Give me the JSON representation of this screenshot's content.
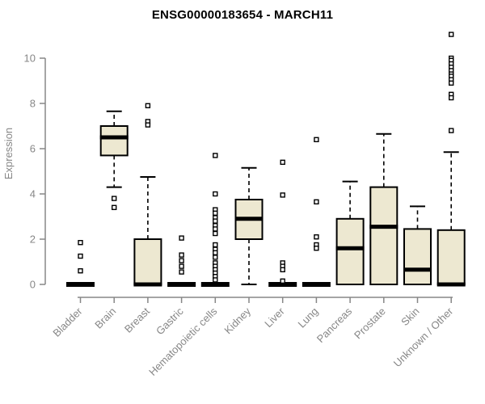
{
  "chart_data": {
    "type": "boxplot",
    "title": "ENSG00000183654 - MARCH11",
    "ylabel": "Expression",
    "xlabel": "",
    "yticks": [
      0,
      2,
      4,
      6,
      8,
      10
    ],
    "ylim": [
      0,
      11.2
    ],
    "grid": false,
    "legend": "none",
    "categories": [
      "Bladder",
      "Brain",
      "Breast",
      "Gastric",
      "Hematopoietic cells",
      "Kidney",
      "Liver",
      "Lung",
      "Pancreas",
      "Prostate",
      "Skin",
      "Unknown / Other"
    ],
    "series": [
      {
        "category": "Bladder",
        "whislo": 0,
        "q1": 0,
        "med": 0,
        "q3": 0,
        "whishi": 0,
        "outliers": [
          1.85,
          1.25,
          0.6
        ]
      },
      {
        "category": "Brain",
        "whislo": 4.3,
        "q1": 5.7,
        "med": 6.5,
        "q3": 7.0,
        "whishi": 7.65,
        "outliers": [
          3.8,
          3.4
        ]
      },
      {
        "category": "Breast",
        "whislo": 0,
        "q1": 0,
        "med": 0,
        "q3": 2.0,
        "whishi": 4.75,
        "outliers": [
          7.9,
          7.2,
          7.05
        ]
      },
      {
        "category": "Gastric",
        "whislo": 0,
        "q1": 0,
        "med": 0,
        "q3": 0,
        "whishi": 0,
        "outliers": [
          2.05,
          1.3,
          1.05,
          0.8,
          0.55
        ]
      },
      {
        "category": "Hematopoietic cells",
        "whislo": 0,
        "q1": 0,
        "med": 0,
        "q3": 0,
        "whishi": 0,
        "outliers": [
          5.7,
          4.0,
          3.3,
          3.15,
          2.95,
          2.8,
          2.6,
          2.45,
          2.25,
          1.75,
          1.55,
          1.4,
          1.2,
          0.95,
          0.8,
          0.65,
          0.5,
          0.35,
          0.2
        ]
      },
      {
        "category": "Kidney",
        "whislo": 0,
        "q1": 2.0,
        "med": 2.9,
        "q3": 3.75,
        "whishi": 5.15,
        "outliers": []
      },
      {
        "category": "Liver",
        "whislo": 0,
        "q1": 0,
        "med": 0,
        "q3": 0,
        "whishi": 0,
        "outliers": [
          5.4,
          3.95,
          0.95,
          0.8,
          0.65,
          0.15
        ]
      },
      {
        "category": "Lung",
        "whislo": 0,
        "q1": 0,
        "med": 0,
        "q3": 0,
        "whishi": 0,
        "outliers": [
          6.4,
          3.65,
          2.1,
          1.75,
          1.6
        ]
      },
      {
        "category": "Pancreas",
        "whislo": 0,
        "q1": 0,
        "med": 1.6,
        "q3": 2.9,
        "whishi": 4.55,
        "outliers": []
      },
      {
        "category": "Prostate",
        "whislo": 0,
        "q1": 0,
        "med": 2.55,
        "q3": 4.3,
        "whishi": 6.65,
        "outliers": []
      },
      {
        "category": "Skin",
        "whislo": 0,
        "q1": 0,
        "med": 0.65,
        "q3": 2.45,
        "whishi": 3.45,
        "outliers": []
      },
      {
        "category": "Unknown / Other",
        "whislo": 0,
        "q1": 0,
        "med": 0,
        "q3": 2.4,
        "whishi": 5.85,
        "outliers": [
          11.05,
          10.0,
          9.9,
          9.75,
          9.6,
          9.45,
          9.3,
          9.2,
          9.05,
          8.9,
          8.4,
          8.25,
          6.8
        ]
      }
    ],
    "colors": {
      "box_fill": "#ede8d1",
      "box_stroke": "#000000",
      "median": "#000000",
      "outlier_fill": "#ffffff",
      "axis": "#878787",
      "tick_label": "#878787",
      "title": "#000000",
      "background": "#ffffff"
    }
  }
}
